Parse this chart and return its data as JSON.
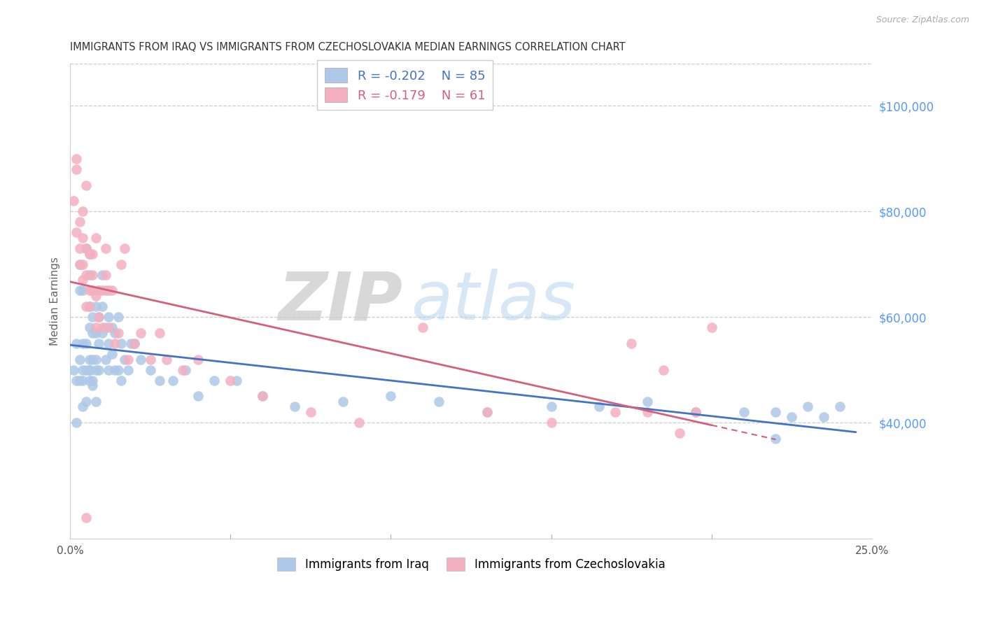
{
  "title": "IMMIGRANTS FROM IRAQ VS IMMIGRANTS FROM CZECHOSLOVAKIA MEDIAN EARNINGS CORRELATION CHART",
  "source": "Source: ZipAtlas.com",
  "ylabel": "Median Earnings",
  "right_yticks": [
    40000,
    60000,
    80000,
    100000
  ],
  "right_yticklabels": [
    "$40,000",
    "$60,000",
    "$80,000",
    "$100,000"
  ],
  "xlim": [
    0.0,
    0.25
  ],
  "ylim": [
    18000,
    108000
  ],
  "legend_iraq_r": "-0.202",
  "legend_iraq_n": "85",
  "legend_czech_r": "-0.179",
  "legend_czech_n": "61",
  "iraq_color": "#adc8e8",
  "czech_color": "#f4b0c0",
  "iraq_line_color": "#4472c4",
  "czech_line_color": "#d4607a",
  "background_color": "#ffffff",
  "grid_color": "#cccccc",
  "iraq_x": [
    0.001,
    0.002,
    0.002,
    0.002,
    0.003,
    0.003,
    0.003,
    0.003,
    0.004,
    0.004,
    0.004,
    0.004,
    0.004,
    0.005,
    0.005,
    0.005,
    0.005,
    0.006,
    0.006,
    0.006,
    0.006,
    0.006,
    0.006,
    0.007,
    0.007,
    0.007,
    0.007,
    0.007,
    0.008,
    0.008,
    0.008,
    0.008,
    0.009,
    0.009,
    0.009,
    0.009,
    0.01,
    0.01,
    0.01,
    0.011,
    0.011,
    0.011,
    0.012,
    0.012,
    0.012,
    0.013,
    0.013,
    0.014,
    0.014,
    0.015,
    0.015,
    0.016,
    0.016,
    0.017,
    0.018,
    0.019,
    0.02,
    0.022,
    0.025,
    0.028,
    0.032,
    0.036,
    0.04,
    0.045,
    0.052,
    0.06,
    0.07,
    0.085,
    0.1,
    0.115,
    0.13,
    0.15,
    0.165,
    0.18,
    0.195,
    0.21,
    0.22,
    0.225,
    0.23,
    0.235,
    0.24,
    0.006,
    0.007,
    0.008,
    0.22
  ],
  "iraq_y": [
    50000,
    48000,
    55000,
    40000,
    65000,
    70000,
    48000,
    52000,
    55000,
    50000,
    48000,
    65000,
    43000,
    73000,
    55000,
    50000,
    44000,
    68000,
    62000,
    58000,
    52000,
    50000,
    48000,
    65000,
    60000,
    57000,
    52000,
    48000,
    62000,
    57000,
    52000,
    50000,
    65000,
    60000,
    55000,
    50000,
    68000,
    62000,
    57000,
    65000,
    58000,
    52000,
    60000,
    55000,
    50000,
    58000,
    53000,
    57000,
    50000,
    60000,
    50000,
    55000,
    48000,
    52000,
    50000,
    55000,
    55000,
    52000,
    50000,
    48000,
    48000,
    50000,
    45000,
    48000,
    48000,
    45000,
    43000,
    44000,
    45000,
    44000,
    42000,
    43000,
    43000,
    44000,
    42000,
    42000,
    42000,
    41000,
    43000,
    41000,
    43000,
    50000,
    47000,
    44000,
    37000
  ],
  "czech_x": [
    0.001,
    0.002,
    0.002,
    0.002,
    0.003,
    0.003,
    0.003,
    0.004,
    0.004,
    0.004,
    0.004,
    0.005,
    0.005,
    0.005,
    0.005,
    0.006,
    0.006,
    0.006,
    0.006,
    0.007,
    0.007,
    0.007,
    0.008,
    0.008,
    0.008,
    0.009,
    0.009,
    0.01,
    0.01,
    0.011,
    0.011,
    0.012,
    0.012,
    0.013,
    0.014,
    0.015,
    0.016,
    0.017,
    0.018,
    0.02,
    0.022,
    0.025,
    0.028,
    0.03,
    0.035,
    0.04,
    0.05,
    0.06,
    0.075,
    0.09,
    0.11,
    0.13,
    0.15,
    0.17,
    0.175,
    0.18,
    0.185,
    0.19,
    0.195,
    0.2,
    0.005
  ],
  "czech_y": [
    82000,
    88000,
    76000,
    90000,
    73000,
    70000,
    78000,
    70000,
    75000,
    67000,
    80000,
    73000,
    68000,
    62000,
    85000,
    72000,
    65000,
    62000,
    72000,
    72000,
    68000,
    65000,
    64000,
    58000,
    75000,
    65000,
    60000,
    65000,
    58000,
    73000,
    68000,
    58000,
    65000,
    65000,
    55000,
    57000,
    70000,
    73000,
    52000,
    55000,
    57000,
    52000,
    57000,
    52000,
    50000,
    52000,
    48000,
    45000,
    42000,
    40000,
    58000,
    42000,
    40000,
    42000,
    55000,
    42000,
    50000,
    38000,
    42000,
    58000,
    22000
  ]
}
